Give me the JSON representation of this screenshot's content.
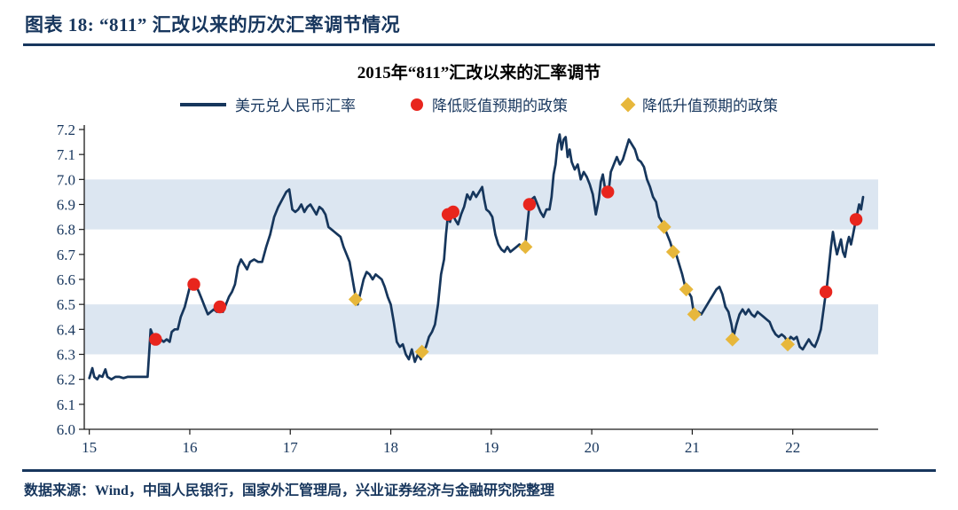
{
  "header": {
    "title": "图表 18: “811” 汇改以来的历次汇率调节情况"
  },
  "footer": {
    "source": "数据来源：Wind，中国人民银行，国家外汇管理局，兴业证券经济与金融研究院整理"
  },
  "colors": {
    "navy": "#17365D",
    "line": "#16365C",
    "red": "#E8251D",
    "gold": "#E7B73B",
    "band": "#DCE6F1",
    "axis": "#1A1A1A"
  },
  "chart_data": {
    "type": "line",
    "title": "2015年“811”汇改以来的汇率调节",
    "legend": [
      {
        "label": "美元兑人民币汇率",
        "marker": "line",
        "color": "#16365C"
      },
      {
        "label": "降低贬值预期的政策",
        "marker": "circle",
        "color": "#E8251D"
      },
      {
        "label": "降低升值预期的政策",
        "marker": "diamond",
        "color": "#E7B73B"
      }
    ],
    "xlim": [
      2014.95,
      2022.85
    ],
    "ylim": [
      6.0,
      7.2
    ],
    "y_ticks": [
      6.0,
      6.1,
      6.2,
      6.3,
      6.4,
      6.5,
      6.6,
      6.7,
      6.8,
      6.9,
      7.0,
      7.1,
      7.2
    ],
    "x_ticks": [
      2015,
      2016,
      2017,
      2018,
      2019,
      2020,
      2021,
      2022
    ],
    "x_tick_labels": [
      "15",
      "16",
      "17",
      "18",
      "19",
      "20",
      "21",
      "22"
    ],
    "bands": [
      [
        6.8,
        7.0
      ],
      [
        6.3,
        6.5
      ]
    ],
    "grid": false,
    "series": {
      "name": "美元兑人民币汇率",
      "points": [
        [
          2015.0,
          6.205
        ],
        [
          2015.03,
          6.245
        ],
        [
          2015.05,
          6.21
        ],
        [
          2015.08,
          6.2
        ],
        [
          2015.1,
          6.215
        ],
        [
          2015.13,
          6.21
        ],
        [
          2015.16,
          6.24
        ],
        [
          2015.18,
          6.21
        ],
        [
          2015.22,
          6.2
        ],
        [
          2015.26,
          6.21
        ],
        [
          2015.3,
          6.21
        ],
        [
          2015.34,
          6.205
        ],
        [
          2015.38,
          6.21
        ],
        [
          2015.42,
          6.21
        ],
        [
          2015.46,
          6.21
        ],
        [
          2015.5,
          6.21
        ],
        [
          2015.54,
          6.21
        ],
        [
          2015.58,
          6.21
        ],
        [
          2015.6,
          6.33
        ],
        [
          2015.61,
          6.4
        ],
        [
          2015.63,
          6.38
        ],
        [
          2015.65,
          6.36
        ],
        [
          2015.68,
          6.35
        ],
        [
          2015.71,
          6.36
        ],
        [
          2015.74,
          6.35
        ],
        [
          2015.77,
          6.36
        ],
        [
          2015.8,
          6.35
        ],
        [
          2015.82,
          6.39
        ],
        [
          2015.85,
          6.4
        ],
        [
          2015.88,
          6.4
        ],
        [
          2015.91,
          6.45
        ],
        [
          2015.95,
          6.49
        ],
        [
          2016.0,
          6.57
        ],
        [
          2016.03,
          6.58
        ],
        [
          2016.06,
          6.575
        ],
        [
          2016.09,
          6.55
        ],
        [
          2016.12,
          6.52
        ],
        [
          2016.15,
          6.49
        ],
        [
          2016.18,
          6.46
        ],
        [
          2016.21,
          6.47
        ],
        [
          2016.24,
          6.48
        ],
        [
          2016.27,
          6.47
        ],
        [
          2016.3,
          6.49
        ],
        [
          2016.33,
          6.47
        ],
        [
          2016.36,
          6.5
        ],
        [
          2016.39,
          6.53
        ],
        [
          2016.42,
          6.55
        ],
        [
          2016.45,
          6.58
        ],
        [
          2016.48,
          6.65
        ],
        [
          2016.51,
          6.68
        ],
        [
          2016.54,
          6.66
        ],
        [
          2016.57,
          6.64
        ],
        [
          2016.6,
          6.67
        ],
        [
          2016.64,
          6.68
        ],
        [
          2016.68,
          6.67
        ],
        [
          2016.72,
          6.67
        ],
        [
          2016.76,
          6.73
        ],
        [
          2016.8,
          6.78
        ],
        [
          2016.84,
          6.85
        ],
        [
          2016.88,
          6.89
        ],
        [
          2016.92,
          6.92
        ],
        [
          2016.96,
          6.95
        ],
        [
          2016.99,
          6.96
        ],
        [
          2017.02,
          6.88
        ],
        [
          2017.05,
          6.87
        ],
        [
          2017.08,
          6.88
        ],
        [
          2017.11,
          6.9
        ],
        [
          2017.14,
          6.87
        ],
        [
          2017.17,
          6.89
        ],
        [
          2017.2,
          6.9
        ],
        [
          2017.23,
          6.88
        ],
        [
          2017.26,
          6.86
        ],
        [
          2017.29,
          6.89
        ],
        [
          2017.32,
          6.88
        ],
        [
          2017.35,
          6.86
        ],
        [
          2017.38,
          6.81
        ],
        [
          2017.41,
          6.8
        ],
        [
          2017.44,
          6.79
        ],
        [
          2017.47,
          6.78
        ],
        [
          2017.5,
          6.77
        ],
        [
          2017.53,
          6.73
        ],
        [
          2017.56,
          6.7
        ],
        [
          2017.59,
          6.67
        ],
        [
          2017.62,
          6.6
        ],
        [
          2017.65,
          6.53
        ],
        [
          2017.67,
          6.5
        ],
        [
          2017.7,
          6.55
        ],
        [
          2017.73,
          6.6
        ],
        [
          2017.76,
          6.63
        ],
        [
          2017.79,
          6.62
        ],
        [
          2017.82,
          6.6
        ],
        [
          2017.85,
          6.62
        ],
        [
          2017.88,
          6.61
        ],
        [
          2017.91,
          6.6
        ],
        [
          2017.94,
          6.57
        ],
        [
          2017.97,
          6.53
        ],
        [
          2018.0,
          6.5
        ],
        [
          2018.03,
          6.43
        ],
        [
          2018.06,
          6.35
        ],
        [
          2018.09,
          6.33
        ],
        [
          2018.12,
          6.34
        ],
        [
          2018.15,
          6.3
        ],
        [
          2018.18,
          6.28
        ],
        [
          2018.21,
          6.32
        ],
        [
          2018.24,
          6.27
        ],
        [
          2018.27,
          6.3
        ],
        [
          2018.3,
          6.28
        ],
        [
          2018.32,
          6.31
        ],
        [
          2018.35,
          6.33
        ],
        [
          2018.38,
          6.37
        ],
        [
          2018.41,
          6.39
        ],
        [
          2018.44,
          6.42
        ],
        [
          2018.47,
          6.5
        ],
        [
          2018.5,
          6.62
        ],
        [
          2018.53,
          6.68
        ],
        [
          2018.55,
          6.78
        ],
        [
          2018.57,
          6.86
        ],
        [
          2018.59,
          6.83
        ],
        [
          2018.61,
          6.87
        ],
        [
          2018.64,
          6.84
        ],
        [
          2018.67,
          6.82
        ],
        [
          2018.7,
          6.86
        ],
        [
          2018.73,
          6.89
        ],
        [
          2018.76,
          6.94
        ],
        [
          2018.79,
          6.92
        ],
        [
          2018.82,
          6.95
        ],
        [
          2018.85,
          6.93
        ],
        [
          2018.88,
          6.95
        ],
        [
          2018.91,
          6.97
        ],
        [
          2018.93,
          6.92
        ],
        [
          2018.95,
          6.88
        ],
        [
          2018.98,
          6.87
        ],
        [
          2019.01,
          6.85
        ],
        [
          2019.04,
          6.78
        ],
        [
          2019.07,
          6.74
        ],
        [
          2019.1,
          6.72
        ],
        [
          2019.13,
          6.71
        ],
        [
          2019.16,
          6.73
        ],
        [
          2019.19,
          6.71
        ],
        [
          2019.22,
          6.72
        ],
        [
          2019.25,
          6.73
        ],
        [
          2019.28,
          6.74
        ],
        [
          2019.31,
          6.72
        ],
        [
          2019.34,
          6.74
        ],
        [
          2019.36,
          6.82
        ],
        [
          2019.38,
          6.9
        ],
        [
          2019.4,
          6.92
        ],
        [
          2019.43,
          6.93
        ],
        [
          2019.46,
          6.9
        ],
        [
          2019.49,
          6.87
        ],
        [
          2019.52,
          6.85
        ],
        [
          2019.55,
          6.88
        ],
        [
          2019.58,
          6.88
        ],
        [
          2019.6,
          6.93
        ],
        [
          2019.62,
          7.02
        ],
        [
          2019.64,
          7.06
        ],
        [
          2019.66,
          7.14
        ],
        [
          2019.68,
          7.18
        ],
        [
          2019.7,
          7.12
        ],
        [
          2019.72,
          7.16
        ],
        [
          2019.74,
          7.17
        ],
        [
          2019.76,
          7.09
        ],
        [
          2019.78,
          7.12
        ],
        [
          2019.8,
          7.07
        ],
        [
          2019.83,
          7.04
        ],
        [
          2019.86,
          7.06
        ],
        [
          2019.89,
          7.0
        ],
        [
          2019.92,
          7.03
        ],
        [
          2019.95,
          7.01
        ],
        [
          2019.98,
          6.98
        ],
        [
          2020.01,
          6.94
        ],
        [
          2020.04,
          6.86
        ],
        [
          2020.07,
          6.92
        ],
        [
          2020.09,
          6.99
        ],
        [
          2020.11,
          7.02
        ],
        [
          2020.13,
          6.97
        ],
        [
          2020.15,
          6.95
        ],
        [
          2020.17,
          6.96
        ],
        [
          2020.19,
          7.03
        ],
        [
          2020.22,
          7.06
        ],
        [
          2020.25,
          7.09
        ],
        [
          2020.28,
          7.06
        ],
        [
          2020.31,
          7.08
        ],
        [
          2020.34,
          7.12
        ],
        [
          2020.37,
          7.16
        ],
        [
          2020.4,
          7.14
        ],
        [
          2020.43,
          7.12
        ],
        [
          2020.46,
          7.08
        ],
        [
          2020.49,
          7.07
        ],
        [
          2020.52,
          7.05
        ],
        [
          2020.55,
          7.0
        ],
        [
          2020.58,
          6.97
        ],
        [
          2020.61,
          6.93
        ],
        [
          2020.64,
          6.91
        ],
        [
          2020.67,
          6.85
        ],
        [
          2020.7,
          6.83
        ],
        [
          2020.72,
          6.81
        ],
        [
          2020.75,
          6.78
        ],
        [
          2020.78,
          6.75
        ],
        [
          2020.81,
          6.71
        ],
        [
          2020.84,
          6.7
        ],
        [
          2020.87,
          6.66
        ],
        [
          2020.9,
          6.62
        ],
        [
          2020.93,
          6.57
        ],
        [
          2020.96,
          6.55
        ],
        [
          2020.99,
          6.53
        ],
        [
          2021.01,
          6.48
        ],
        [
          2021.03,
          6.46
        ],
        [
          2021.06,
          6.47
        ],
        [
          2021.09,
          6.46
        ],
        [
          2021.12,
          6.48
        ],
        [
          2021.15,
          6.5
        ],
        [
          2021.18,
          6.52
        ],
        [
          2021.21,
          6.54
        ],
        [
          2021.24,
          6.56
        ],
        [
          2021.27,
          6.57
        ],
        [
          2021.3,
          6.54
        ],
        [
          2021.33,
          6.49
        ],
        [
          2021.36,
          6.47
        ],
        [
          2021.39,
          6.42
        ],
        [
          2021.41,
          6.37
        ],
        [
          2021.44,
          6.42
        ],
        [
          2021.47,
          6.46
        ],
        [
          2021.5,
          6.48
        ],
        [
          2021.53,
          6.46
        ],
        [
          2021.56,
          6.48
        ],
        [
          2021.59,
          6.46
        ],
        [
          2021.62,
          6.45
        ],
        [
          2021.65,
          6.47
        ],
        [
          2021.68,
          6.46
        ],
        [
          2021.71,
          6.45
        ],
        [
          2021.74,
          6.44
        ],
        [
          2021.77,
          6.43
        ],
        [
          2021.8,
          6.4
        ],
        [
          2021.83,
          6.38
        ],
        [
          2021.86,
          6.37
        ],
        [
          2021.89,
          6.38
        ],
        [
          2021.92,
          6.37
        ],
        [
          2021.95,
          6.35
        ],
        [
          2021.98,
          6.37
        ],
        [
          2022.01,
          6.36
        ],
        [
          2022.04,
          6.37
        ],
        [
          2022.07,
          6.33
        ],
        [
          2022.1,
          6.32
        ],
        [
          2022.13,
          6.34
        ],
        [
          2022.16,
          6.36
        ],
        [
          2022.19,
          6.34
        ],
        [
          2022.22,
          6.33
        ],
        [
          2022.25,
          6.36
        ],
        [
          2022.28,
          6.4
        ],
        [
          2022.3,
          6.46
        ],
        [
          2022.32,
          6.52
        ],
        [
          2022.34,
          6.57
        ],
        [
          2022.36,
          6.65
        ],
        [
          2022.38,
          6.73
        ],
        [
          2022.4,
          6.79
        ],
        [
          2022.42,
          6.74
        ],
        [
          2022.44,
          6.7
        ],
        [
          2022.46,
          6.73
        ],
        [
          2022.48,
          6.76
        ],
        [
          2022.5,
          6.71
        ],
        [
          2022.52,
          6.69
        ],
        [
          2022.54,
          6.74
        ],
        [
          2022.56,
          6.77
        ],
        [
          2022.58,
          6.74
        ],
        [
          2022.6,
          6.78
        ],
        [
          2022.62,
          6.82
        ],
        [
          2022.64,
          6.86
        ],
        [
          2022.66,
          6.9
        ],
        [
          2022.68,
          6.88
        ],
        [
          2022.7,
          6.93
        ]
      ]
    },
    "red_points": {
      "name": "降低贬值预期的政策",
      "points": [
        [
          2015.66,
          6.36
        ],
        [
          2016.04,
          6.58
        ],
        [
          2016.3,
          6.49
        ],
        [
          2018.57,
          6.86
        ],
        [
          2018.62,
          6.87
        ],
        [
          2019.38,
          6.9
        ],
        [
          2020.16,
          6.95
        ],
        [
          2022.33,
          6.55
        ],
        [
          2022.63,
          6.84
        ]
      ]
    },
    "gold_points": {
      "name": "降低升值预期的政策",
      "points": [
        [
          2017.65,
          6.52
        ],
        [
          2018.31,
          6.31
        ],
        [
          2019.34,
          6.73
        ],
        [
          2020.72,
          6.81
        ],
        [
          2020.81,
          6.71
        ],
        [
          2020.94,
          6.56
        ],
        [
          2021.02,
          6.46
        ],
        [
          2021.4,
          6.36
        ],
        [
          2021.95,
          6.34
        ]
      ]
    }
  }
}
